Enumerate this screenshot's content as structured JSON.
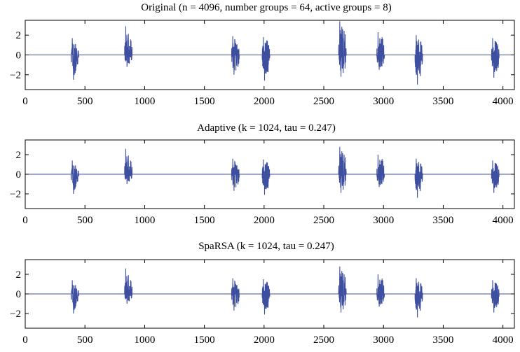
{
  "chart_data": [
    {
      "type": "line",
      "title": "Original (n = 4096, number groups = 64, active groups = 8)",
      "xlim": [
        0,
        4096
      ],
      "ylim": [
        -3.5,
        3.5
      ],
      "xticks": [
        0,
        500,
        1000,
        1500,
        2000,
        2500,
        3000,
        3500,
        4000
      ],
      "yticks": [
        -2,
        0,
        2
      ],
      "xtick_labels": [
        "0",
        "500",
        "1000",
        "1500",
        "2000",
        "2500",
        "3000",
        "3500",
        "4000"
      ],
      "ytick_labels": [
        "−2",
        "0",
        "2"
      ],
      "grid": false,
      "line_color": "#3f4fa0",
      "active_groups": [
        {
          "x_start": 384,
          "x_end": 448,
          "ymin": -2.5,
          "ymax": 1.7
        },
        {
          "x_start": 832,
          "x_end": 896,
          "ymin": -1.2,
          "ymax": 2.9
        },
        {
          "x_start": 1728,
          "x_end": 1792,
          "ymin": -2.0,
          "ymax": 1.9
        },
        {
          "x_start": 1984,
          "x_end": 2048,
          "ymin": -2.6,
          "ymax": 1.8
        },
        {
          "x_start": 2624,
          "x_end": 2688,
          "ymin": -2.2,
          "ymax": 3.4
        },
        {
          "x_start": 2944,
          "x_end": 3008,
          "ymin": -1.5,
          "ymax": 2.3
        },
        {
          "x_start": 3264,
          "x_end": 3328,
          "ymin": -3.0,
          "ymax": 2.0
        },
        {
          "x_start": 3904,
          "x_end": 3968,
          "ymin": -2.3,
          "ymax": 1.7
        }
      ]
    },
    {
      "type": "line",
      "title": "Adaptive (k = 1024, tau = 0.247)",
      "xlim": [
        0,
        4096
      ],
      "ylim": [
        -3.5,
        3.5
      ],
      "xticks": [
        0,
        500,
        1000,
        1500,
        2000,
        2500,
        3000,
        3500,
        4000
      ],
      "yticks": [
        -2,
        0,
        2
      ],
      "xtick_labels": [
        "0",
        "500",
        "1000",
        "1500",
        "2000",
        "2500",
        "3000",
        "3500",
        "4000"
      ],
      "ytick_labels": [
        "−2",
        "0",
        "2"
      ],
      "grid": false,
      "line_color": "#3f4fa0",
      "active_groups": [
        {
          "x_start": 384,
          "x_end": 448,
          "ymin": -2.0,
          "ymax": 1.4
        },
        {
          "x_start": 832,
          "x_end": 896,
          "ymin": -1.0,
          "ymax": 2.6
        },
        {
          "x_start": 1728,
          "x_end": 1792,
          "ymin": -1.7,
          "ymax": 1.6
        },
        {
          "x_start": 1984,
          "x_end": 2048,
          "ymin": -2.1,
          "ymax": 1.5
        },
        {
          "x_start": 2624,
          "x_end": 2688,
          "ymin": -1.9,
          "ymax": 2.8
        },
        {
          "x_start": 2944,
          "x_end": 3008,
          "ymin": -1.3,
          "ymax": 2.0
        },
        {
          "x_start": 3264,
          "x_end": 3328,
          "ymin": -2.4,
          "ymax": 1.6
        },
        {
          "x_start": 3904,
          "x_end": 3968,
          "ymin": -1.9,
          "ymax": 1.4
        }
      ]
    },
    {
      "type": "line",
      "title": "SpaRSA (k = 1024, tau = 0.247)",
      "xlim": [
        0,
        4096
      ],
      "ylim": [
        -3.5,
        3.5
      ],
      "xticks": [
        0,
        500,
        1000,
        1500,
        2000,
        2500,
        3000,
        3500,
        4000
      ],
      "yticks": [
        -2,
        0,
        2
      ],
      "xtick_labels": [
        "0",
        "500",
        "1000",
        "1500",
        "2000",
        "2500",
        "3000",
        "3500",
        "4000"
      ],
      "ytick_labels": [
        "−2",
        "0",
        "2"
      ],
      "grid": false,
      "line_color": "#3f4fa0",
      "active_groups": [
        {
          "x_start": 384,
          "x_end": 448,
          "ymin": -2.0,
          "ymax": 1.4
        },
        {
          "x_start": 832,
          "x_end": 896,
          "ymin": -1.0,
          "ymax": 2.6
        },
        {
          "x_start": 1728,
          "x_end": 1792,
          "ymin": -1.7,
          "ymax": 1.6
        },
        {
          "x_start": 1984,
          "x_end": 2048,
          "ymin": -2.1,
          "ymax": 1.5
        },
        {
          "x_start": 2624,
          "x_end": 2688,
          "ymin": -1.9,
          "ymax": 2.8
        },
        {
          "x_start": 2944,
          "x_end": 3008,
          "ymin": -1.3,
          "ymax": 2.0
        },
        {
          "x_start": 3264,
          "x_end": 3328,
          "ymin": -2.4,
          "ymax": 1.6
        },
        {
          "x_start": 3904,
          "x_end": 3968,
          "ymin": -1.9,
          "ymax": 1.4
        }
      ]
    }
  ]
}
